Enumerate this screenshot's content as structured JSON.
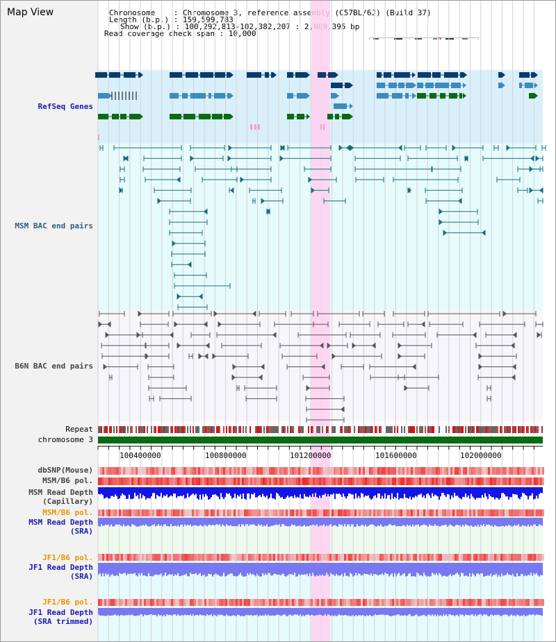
{
  "view_title": "Map View",
  "header": {
    "line1": "Chromosome    : Chromosome 3, reference assembly (C57BL/6J) (Build 37)",
    "line2": "Length (b.p.) : 159,599,783",
    "line3": "Show (b.p.) : 100,292,813-102,382,207 : 2,089,395 bp",
    "line4": "Read coverage check span : 10,000"
  },
  "tracks": {
    "refseq": "RefSeq Genes",
    "msm_bac": "MSM BAC end pairs",
    "b6n_bac": "B6N BAC end pairs",
    "repeat": "Repeat",
    "chromosome": "chromosome 3",
    "dbsnp": "dbSNP(Mouse)",
    "msm_b6_pol": "MSM/B6 pol.",
    "msm_depth_cap_1": "MSM Read Depth",
    "msm_depth_cap_2": "(Capillary)",
    "msm_b6_pol_2": "MSM/B6 pol.",
    "msm_depth_sra_1": "MSM Read Depth",
    "msm_depth_sra_2": "(SRA)",
    "jf1_b6_pol": "JF1/B6 pol.",
    "jf1_depth_sra_1": "JF1 Read Depth",
    "jf1_depth_sra_2": "(SRA)",
    "jf1_b6_pol_2": "JF1/B6 pol.",
    "jf1_depth_trim_1": "JF1 Read Depth",
    "jf1_depth_trim_2": "(SRA trimmed)"
  },
  "axis_ticks": [
    "100400000",
    "100800000",
    "101200000",
    "101600000",
    "102000000"
  ],
  "colors": {
    "gene_navy": "#0b3a6e",
    "gene_steel": "#3d8bbd",
    "gene_green": "#0b6b12",
    "msm_line": "#1c6b80",
    "b6n_line": "#555555",
    "highlight": "#ffd0f0",
    "chromosome": "#0b6b12",
    "depth_blue": "#1414e6",
    "depth_lavender": "#7878f0"
  }
}
